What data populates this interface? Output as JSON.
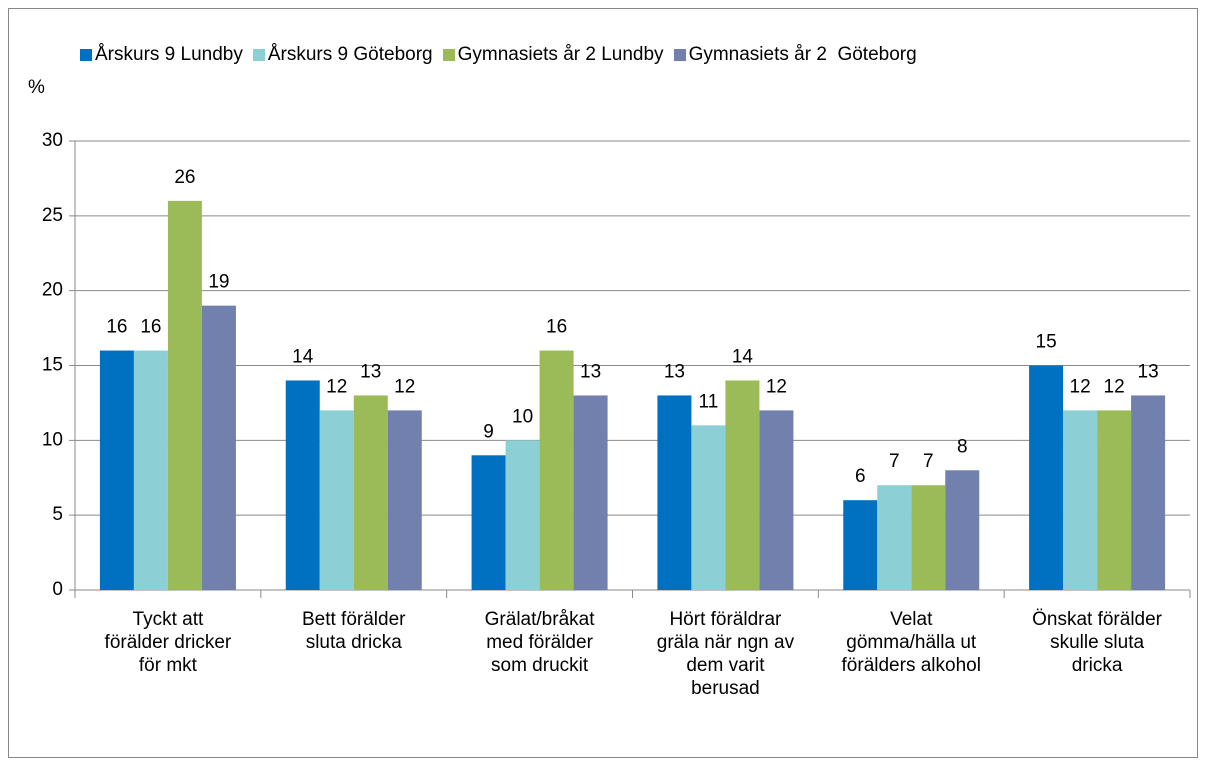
{
  "chart_data": {
    "type": "bar",
    "y_label": "%",
    "categories": [
      "Tyckt att\nförälder dricker\nför mkt",
      "Bett förälder\nsluta dricka",
      "Grälat/bråkat\nmed förälder\nsom druckit",
      "Hört föräldrar\ngräla när ngn av\ndem varit\nberusad",
      "Velat\ngömma/hälla ut\nförälders alkohol",
      "Önskat förälder\nskulle sluta\ndricka"
    ],
    "series": [
      {
        "name": "Årskurs 9 Lundby",
        "color": "#0070c0",
        "values": [
          16,
          14,
          9,
          13,
          6,
          15
        ]
      },
      {
        "name": "Årskurs 9 Göteborg",
        "color": "#8ccfd5",
        "values": [
          16,
          12,
          10,
          11,
          7,
          12
        ]
      },
      {
        "name": "Gymnasiets år 2 Lundby",
        "color": "#9bbb59",
        "values": [
          26,
          13,
          16,
          14,
          7,
          12
        ]
      },
      {
        "name": "Gymnasiets år 2  Göteborg",
        "color": "#7180ac",
        "values": [
          19,
          12,
          13,
          12,
          8,
          13
        ]
      }
    ],
    "ylim": [
      0,
      30
    ],
    "yticks": [
      0,
      5,
      10,
      15,
      20,
      25,
      30
    ],
    "grid": true,
    "legend": "top"
  }
}
